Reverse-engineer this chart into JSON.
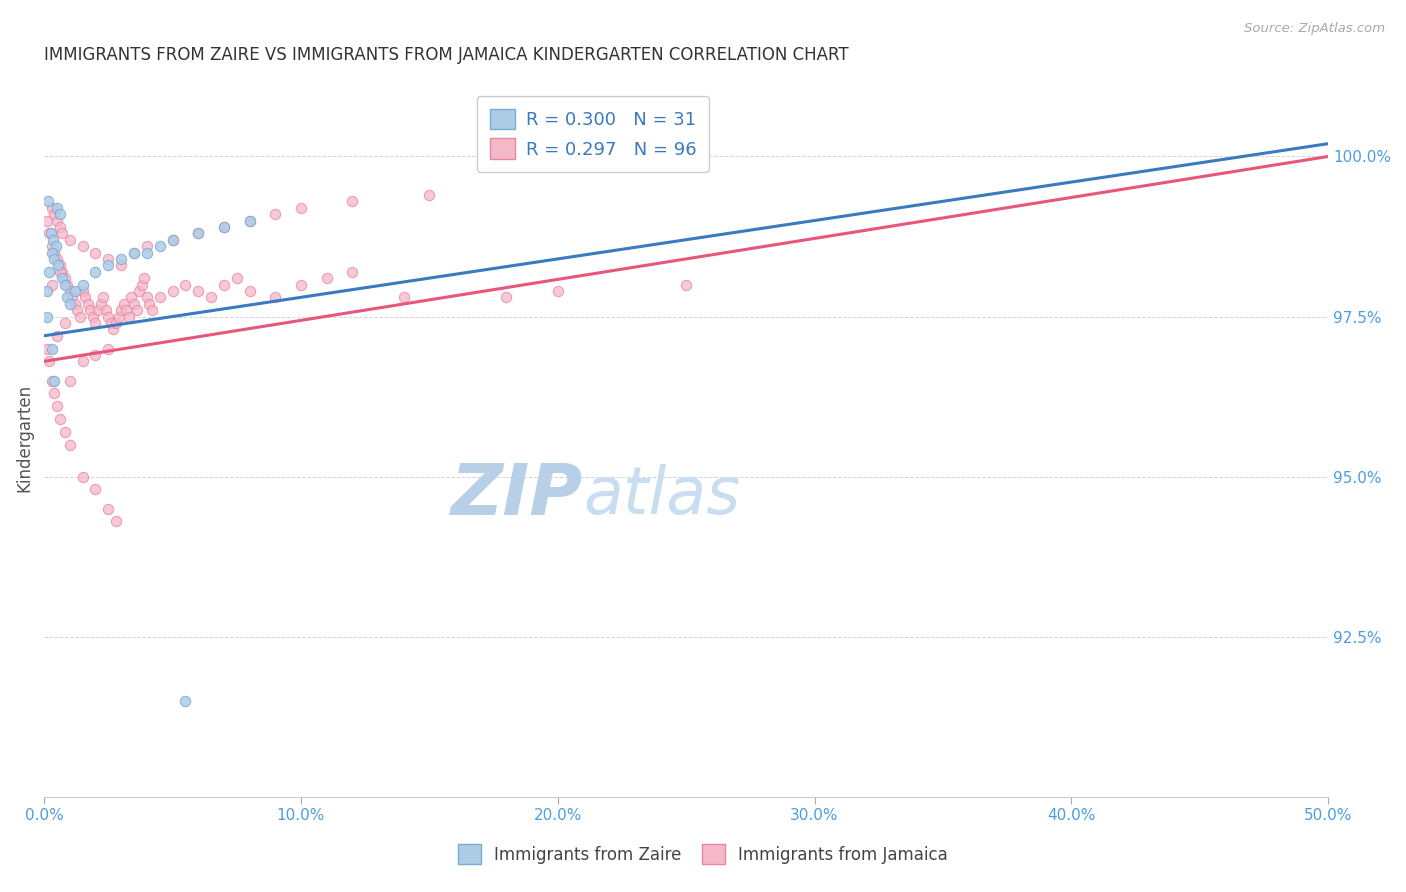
{
  "title": "IMMIGRANTS FROM ZAIRE VS IMMIGRANTS FROM JAMAICA KINDERGARTEN CORRELATION CHART",
  "source_text": "Source: ZipAtlas.com",
  "ylabel": "Kindergarten",
  "xlim": [
    0.0,
    50.0
  ],
  "ylim": [
    90.0,
    101.2
  ],
  "yticks": [
    92.5,
    95.0,
    97.5,
    100.0
  ],
  "ytick_labels": [
    "92.5%",
    "95.0%",
    "97.5%",
    "100.0%"
  ],
  "xticks": [
    0.0,
    10.0,
    20.0,
    30.0,
    40.0,
    50.0
  ],
  "xtick_labels": [
    "0.0%",
    "10.0%",
    "20.0%",
    "30.0%",
    "40.0%",
    "50.0%"
  ],
  "legend_r_blue": "R = 0.300",
  "legend_n_blue": "N = 31",
  "legend_r_pink": "R = 0.297",
  "legend_n_pink": "N = 96",
  "blue_dots": [
    [
      0.15,
      99.3
    ],
    [
      0.5,
      99.2
    ],
    [
      0.6,
      99.1
    ],
    [
      0.25,
      98.8
    ],
    [
      0.35,
      98.7
    ],
    [
      0.45,
      98.6
    ],
    [
      0.3,
      98.5
    ],
    [
      0.4,
      98.4
    ],
    [
      0.55,
      98.3
    ],
    [
      0.2,
      98.2
    ],
    [
      0.7,
      98.1
    ],
    [
      0.8,
      98.0
    ],
    [
      0.1,
      97.9
    ],
    [
      0.9,
      97.8
    ],
    [
      1.0,
      97.7
    ],
    [
      1.2,
      97.9
    ],
    [
      1.5,
      98.0
    ],
    [
      2.0,
      98.2
    ],
    [
      2.5,
      98.3
    ],
    [
      3.0,
      98.4
    ],
    [
      3.5,
      98.5
    ],
    [
      4.0,
      98.5
    ],
    [
      4.5,
      98.6
    ],
    [
      5.0,
      98.7
    ],
    [
      6.0,
      98.8
    ],
    [
      7.0,
      98.9
    ],
    [
      8.0,
      99.0
    ],
    [
      0.3,
      97.0
    ],
    [
      0.4,
      96.5
    ],
    [
      5.5,
      91.5
    ],
    [
      0.1,
      97.5
    ]
  ],
  "pink_dots": [
    [
      0.1,
      99.0
    ],
    [
      0.2,
      98.8
    ],
    [
      0.3,
      98.6
    ],
    [
      0.4,
      98.5
    ],
    [
      0.5,
      98.4
    ],
    [
      0.6,
      98.3
    ],
    [
      0.7,
      98.2
    ],
    [
      0.8,
      98.1
    ],
    [
      0.9,
      98.0
    ],
    [
      1.0,
      97.9
    ],
    [
      1.1,
      97.8
    ],
    [
      1.2,
      97.7
    ],
    [
      1.3,
      97.6
    ],
    [
      1.4,
      97.5
    ],
    [
      1.5,
      97.9
    ],
    [
      1.6,
      97.8
    ],
    [
      1.7,
      97.7
    ],
    [
      1.8,
      97.6
    ],
    [
      1.9,
      97.5
    ],
    [
      2.0,
      97.4
    ],
    [
      2.1,
      97.6
    ],
    [
      2.2,
      97.7
    ],
    [
      2.3,
      97.8
    ],
    [
      2.4,
      97.6
    ],
    [
      2.5,
      97.5
    ],
    [
      2.6,
      97.4
    ],
    [
      2.7,
      97.3
    ],
    [
      2.8,
      97.4
    ],
    [
      2.9,
      97.5
    ],
    [
      3.0,
      97.6
    ],
    [
      3.1,
      97.7
    ],
    [
      3.2,
      97.6
    ],
    [
      3.3,
      97.5
    ],
    [
      3.4,
      97.8
    ],
    [
      3.5,
      97.7
    ],
    [
      3.6,
      97.6
    ],
    [
      3.7,
      97.9
    ],
    [
      3.8,
      98.0
    ],
    [
      3.9,
      98.1
    ],
    [
      4.0,
      97.8
    ],
    [
      4.1,
      97.7
    ],
    [
      4.2,
      97.6
    ],
    [
      4.5,
      97.8
    ],
    [
      5.0,
      97.9
    ],
    [
      5.5,
      98.0
    ],
    [
      6.0,
      97.9
    ],
    [
      6.5,
      97.8
    ],
    [
      7.0,
      98.0
    ],
    [
      7.5,
      98.1
    ],
    [
      8.0,
      97.9
    ],
    [
      9.0,
      97.8
    ],
    [
      10.0,
      98.0
    ],
    [
      11.0,
      98.1
    ],
    [
      12.0,
      98.2
    ],
    [
      0.3,
      99.2
    ],
    [
      0.4,
      99.1
    ],
    [
      0.5,
      99.0
    ],
    [
      0.6,
      98.9
    ],
    [
      0.7,
      98.8
    ],
    [
      1.0,
      98.7
    ],
    [
      1.5,
      98.6
    ],
    [
      2.0,
      98.5
    ],
    [
      2.5,
      98.4
    ],
    [
      3.0,
      98.3
    ],
    [
      3.5,
      98.5
    ],
    [
      4.0,
      98.6
    ],
    [
      5.0,
      98.7
    ],
    [
      6.0,
      98.8
    ],
    [
      7.0,
      98.9
    ],
    [
      8.0,
      99.0
    ],
    [
      9.0,
      99.1
    ],
    [
      10.0,
      99.2
    ],
    [
      12.0,
      99.3
    ],
    [
      15.0,
      99.4
    ],
    [
      0.1,
      97.0
    ],
    [
      0.2,
      96.8
    ],
    [
      0.3,
      96.5
    ],
    [
      0.4,
      96.3
    ],
    [
      0.5,
      96.1
    ],
    [
      0.6,
      95.9
    ],
    [
      0.8,
      95.7
    ],
    [
      1.0,
      95.5
    ],
    [
      1.5,
      95.0
    ],
    [
      2.0,
      94.8
    ],
    [
      2.5,
      94.5
    ],
    [
      2.8,
      94.3
    ],
    [
      1.0,
      96.5
    ],
    [
      1.5,
      96.8
    ],
    [
      2.0,
      96.9
    ],
    [
      2.5,
      97.0
    ],
    [
      0.5,
      97.2
    ],
    [
      0.8,
      97.4
    ],
    [
      0.3,
      98.0
    ],
    [
      0.6,
      98.2
    ],
    [
      14.0,
      97.8
    ],
    [
      18.0,
      97.8
    ],
    [
      20.0,
      97.9
    ],
    [
      25.0,
      98.0
    ]
  ],
  "blue_line": [
    [
      0,
      97.2
    ],
    [
      50,
      100.2
    ]
  ],
  "pink_line": [
    [
      0,
      96.8
    ],
    [
      50,
      100.0
    ]
  ],
  "blue_line_color": "#3a7abf",
  "pink_line_color": "#e8567a",
  "dot_blue_color": "#aecce8",
  "dot_pink_color": "#f5b8cb",
  "dot_blue_edge": "#7aadd4",
  "dot_pink_edge": "#e8869e",
  "grid_color": "#d0d0d0",
  "axis_color": "#555555",
  "title_color": "#333333",
  "tick_color": "#4d9de0",
  "watermark_color": "#ddeeff",
  "watermark_fontsize": 52
}
